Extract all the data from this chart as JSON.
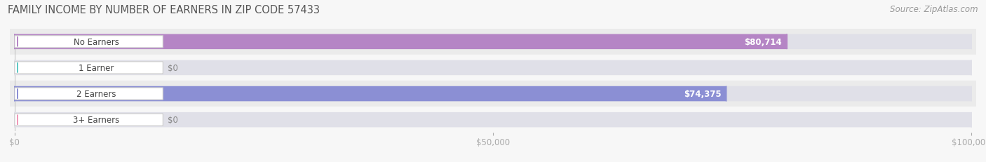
{
  "title": "FAMILY INCOME BY NUMBER OF EARNERS IN ZIP CODE 57433",
  "source": "Source: ZipAtlas.com",
  "categories": [
    "No Earners",
    "1 Earner",
    "2 Earners",
    "3+ Earners"
  ],
  "values": [
    80714,
    0,
    74375,
    0
  ],
  "bar_colors": [
    "#b585c5",
    "#5ec8c4",
    "#8b8fd4",
    "#f099b8"
  ],
  "bar_labels": [
    "$80,714",
    "$0",
    "$74,375",
    "$0"
  ],
  "xlim_max": 100000,
  "xticks": [
    0,
    50000,
    100000
  ],
  "xtick_labels": [
    "$0",
    "$50,000",
    "$100,000"
  ],
  "background_color": "#f7f7f7",
  "row_bg_even": "#ebebeb",
  "row_bg_odd": "#f7f7f7",
  "bar_height": 0.58,
  "title_fontsize": 10.5,
  "source_fontsize": 8.5,
  "label_fontsize": 8.5,
  "tick_fontsize": 8.5,
  "pill_text_color": "#444444",
  "value_label_color_inside": "#ffffff",
  "value_label_color_outside": "#888888"
}
